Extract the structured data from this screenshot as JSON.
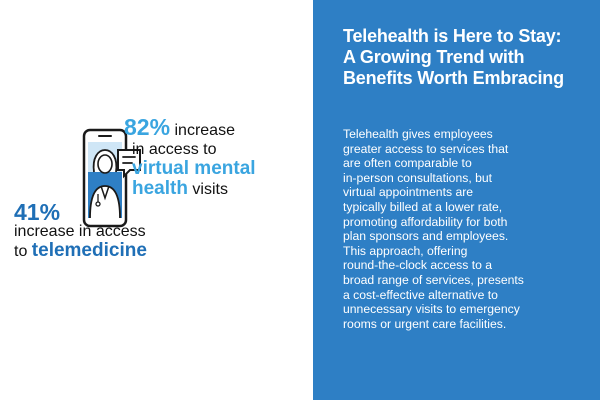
{
  "stat_82": {
    "percent": "82%",
    "line1_rest": " increase",
    "line2": "in access to",
    "highlight_line3": "virtual mental",
    "highlight_line4": "health",
    "line4_rest": " visits"
  },
  "stat_41": {
    "percent": "41%",
    "line2": "increase in access",
    "line3_prefix": "to ",
    "highlight": "telemedicine"
  },
  "panel": {
    "title_line1": "Telehealth is Here to Stay:",
    "title_line2": "A Growing Trend with",
    "title_line3": "Benefits Worth Embracing",
    "body_lines": [
      "Telehealth gives employees",
      "greater access to services that",
      "are often comparable to",
      "in-person consultations, but",
      "virtual appointments are",
      "typically billed at a lower rate,",
      "promoting affordability for both",
      "plan sponsors and employees.",
      "This approach, offering",
      "round-the-clock access to a",
      "broad range of services, presents",
      "a cost-effective alternative to",
      "unnecessary visits to emergency",
      "rooms or urgent care facilities."
    ]
  },
  "colors": {
    "panel_bg": "#2e7fc5",
    "light_blue": "#3aa5e0",
    "dark_blue": "#1f6fb6"
  },
  "icons": {
    "illustration": "phone-doctor-chat-icon"
  }
}
